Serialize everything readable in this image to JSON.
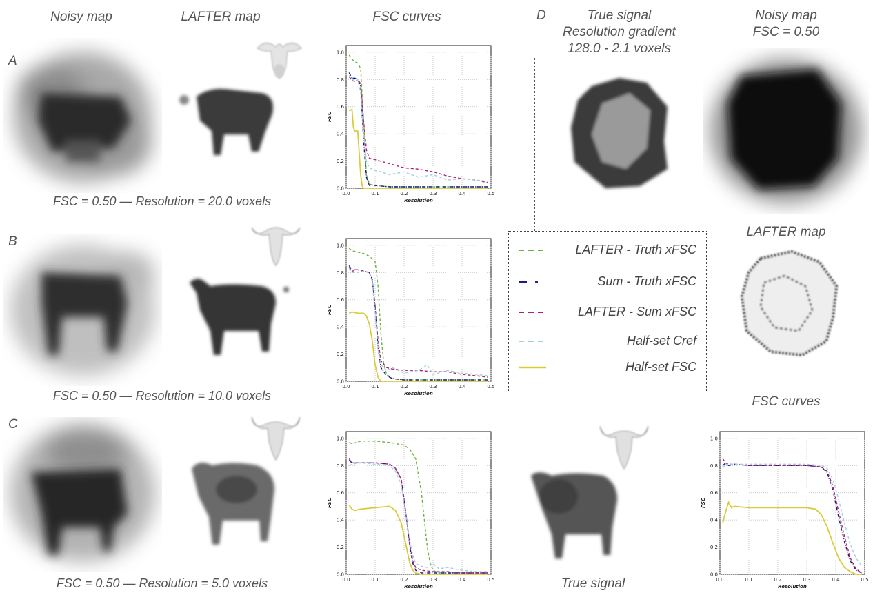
{
  "headers": {
    "noisy": "Noisy map",
    "lafter": "LAFTER map",
    "fsc": "FSC curves"
  },
  "rows": [
    {
      "letter": "A",
      "caption": "FSC = 0.50  —  Resolution = 20.0 voxels"
    },
    {
      "letter": "B",
      "caption": "FSC = 0.50  —  Resolution = 10.0 voxels"
    },
    {
      "letter": "C",
      "caption": "FSC = 0.50  —  Resolution = 5.0 voxels"
    }
  ],
  "panel_d": {
    "letter": "D",
    "true_signal_title_1": "True signal",
    "true_signal_title_2": "Resolution gradient",
    "true_signal_title_3": "128.0 - 2.1 voxels",
    "noisy_title_1": "Noisy map",
    "noisy_title_2": "FSC = 0.50",
    "lafter_title": "LAFTER map",
    "fsc_title": "FSC curves",
    "true_signal_caption": "True signal"
  },
  "legend": [
    {
      "label": "LAFTER - Truth xFSC",
      "color": "#6ab43e",
      "style": "dashed"
    },
    {
      "label": "Sum - Truth xFSC",
      "color": "#1a1a8c",
      "style": "dashdot"
    },
    {
      "label": "LAFTER - Sum xFSC",
      "color": "#b0206e",
      "style": "dashed"
    },
    {
      "label": "Half-set Cref",
      "color": "#9fd0e0",
      "style": "dashed"
    },
    {
      "label": "Half-set FSC",
      "color": "#d8cc3a",
      "style": "solid"
    }
  ],
  "chart_data": [
    {
      "type": "line",
      "id": "A",
      "xlabel": "Resolution",
      "ylabel": "FSC",
      "xlim": [
        0,
        0.5
      ],
      "ylim": [
        0,
        1.05
      ],
      "xticks": [
        "0.0",
        "0.1",
        "0.2",
        "0.3",
        "0.4",
        "0.5"
      ],
      "yticks": [
        "0.0",
        "0.2",
        "0.4",
        "0.6",
        "0.8",
        "1.0"
      ],
      "grid": true,
      "series": [
        {
          "name": "LAFTER - Truth xFSC",
          "x": [
            0.01,
            0.02,
            0.03,
            0.04,
            0.05,
            0.06,
            0.07,
            0.08,
            0.1,
            0.15,
            0.2,
            0.3,
            0.4,
            0.49
          ],
          "y": [
            0.98,
            0.95,
            0.93,
            0.92,
            0.88,
            0.5,
            0.1,
            0.03,
            0.02,
            0.01,
            0.01,
            0.01,
            0.01,
            0.01
          ]
        },
        {
          "name": "Sum - Truth xFSC",
          "x": [
            0.01,
            0.02,
            0.03,
            0.04,
            0.05,
            0.06,
            0.07,
            0.08,
            0.1,
            0.15,
            0.2,
            0.3,
            0.4,
            0.49
          ],
          "y": [
            0.85,
            0.81,
            0.81,
            0.8,
            0.75,
            0.35,
            0.08,
            0.02,
            0.02,
            0.01,
            0.01,
            0.01,
            0.01,
            0.01
          ]
        },
        {
          "name": "LAFTER - Sum xFSC",
          "x": [
            0.01,
            0.02,
            0.03,
            0.04,
            0.05,
            0.06,
            0.07,
            0.08,
            0.1,
            0.15,
            0.2,
            0.25,
            0.3,
            0.35,
            0.4,
            0.45,
            0.49
          ],
          "y": [
            0.82,
            0.8,
            0.78,
            0.8,
            0.77,
            0.5,
            0.28,
            0.22,
            0.21,
            0.18,
            0.15,
            0.14,
            0.12,
            0.09,
            0.07,
            0.06,
            0.04
          ]
        },
        {
          "name": "Half-set Cref",
          "x": [
            0.01,
            0.02,
            0.03,
            0.04,
            0.05,
            0.06,
            0.07,
            0.08,
            0.1,
            0.12,
            0.15,
            0.2,
            0.25,
            0.3,
            0.35,
            0.4,
            0.45,
            0.49
          ],
          "y": [
            0.83,
            0.8,
            0.79,
            0.8,
            0.7,
            0.4,
            0.2,
            0.15,
            0.13,
            0.12,
            0.1,
            0.12,
            0.08,
            0.1,
            0.06,
            0.07,
            0.06,
            0.05
          ]
        },
        {
          "name": "Half-set FSC",
          "x": [
            0.01,
            0.02,
            0.025,
            0.03,
            0.04,
            0.05,
            0.055,
            0.06,
            0.07,
            0.1,
            0.2,
            0.3,
            0.4,
            0.49
          ],
          "y": [
            0.57,
            0.58,
            0.45,
            0.42,
            0.42,
            0.1,
            0.02,
            0.0,
            0.0,
            0.0,
            0.0,
            0.0,
            0.0,
            0.0
          ]
        }
      ]
    },
    {
      "type": "line",
      "id": "B",
      "xlabel": "Resolution",
      "ylabel": "FSC",
      "xlim": [
        0,
        0.5
      ],
      "ylim": [
        0,
        1.05
      ],
      "xticks": [
        "0.0",
        "0.1",
        "0.2",
        "0.3",
        "0.4",
        "0.5"
      ],
      "yticks": [
        "0.0",
        "0.2",
        "0.4",
        "0.6",
        "0.8",
        "1.0"
      ],
      "grid": true,
      "series": [
        {
          "name": "LAFTER - Truth xFSC",
          "x": [
            0.01,
            0.02,
            0.04,
            0.06,
            0.08,
            0.1,
            0.11,
            0.12,
            0.13,
            0.14,
            0.16,
            0.2,
            0.3,
            0.4,
            0.49
          ],
          "y": [
            0.98,
            0.96,
            0.95,
            0.94,
            0.92,
            0.88,
            0.7,
            0.35,
            0.12,
            0.05,
            0.02,
            0.01,
            0.01,
            0.01,
            0.01
          ]
        },
        {
          "name": "Sum - Truth xFSC",
          "x": [
            0.01,
            0.02,
            0.04,
            0.06,
            0.08,
            0.09,
            0.1,
            0.11,
            0.12,
            0.14,
            0.16,
            0.2,
            0.3,
            0.4,
            0.49
          ],
          "y": [
            0.85,
            0.82,
            0.82,
            0.81,
            0.8,
            0.75,
            0.55,
            0.25,
            0.1,
            0.04,
            0.02,
            0.01,
            0.01,
            0.01,
            0.01
          ]
        },
        {
          "name": "LAFTER - Sum xFSC",
          "x": [
            0.01,
            0.02,
            0.04,
            0.06,
            0.08,
            0.09,
            0.1,
            0.11,
            0.12,
            0.14,
            0.16,
            0.2,
            0.25,
            0.3,
            0.35,
            0.4,
            0.45,
            0.49
          ],
          "y": [
            0.84,
            0.81,
            0.82,
            0.81,
            0.8,
            0.74,
            0.55,
            0.3,
            0.15,
            0.1,
            0.09,
            0.08,
            0.08,
            0.07,
            0.07,
            0.05,
            0.04,
            0.03
          ]
        },
        {
          "name": "Half-set Cref",
          "x": [
            0.01,
            0.02,
            0.04,
            0.06,
            0.08,
            0.09,
            0.1,
            0.11,
            0.12,
            0.14,
            0.16,
            0.2,
            0.25,
            0.28,
            0.3,
            0.35,
            0.4,
            0.45,
            0.49
          ],
          "y": [
            0.83,
            0.8,
            0.8,
            0.81,
            0.8,
            0.74,
            0.5,
            0.25,
            0.12,
            0.08,
            0.1,
            0.06,
            0.08,
            0.12,
            0.05,
            0.08,
            0.06,
            0.05,
            0.04
          ]
        },
        {
          "name": "Half-set FSC",
          "x": [
            0.01,
            0.02,
            0.04,
            0.06,
            0.07,
            0.08,
            0.09,
            0.1,
            0.11,
            0.12,
            0.14,
            0.2,
            0.3,
            0.4,
            0.49
          ],
          "y": [
            0.5,
            0.51,
            0.5,
            0.5,
            0.48,
            0.42,
            0.3,
            0.12,
            0.03,
            0.0,
            0.0,
            0.0,
            0.0,
            0.0,
            0.0
          ]
        }
      ]
    },
    {
      "type": "line",
      "id": "C",
      "xlabel": "Resolution",
      "ylabel": "FSC",
      "xlim": [
        0,
        0.5
      ],
      "ylim": [
        0,
        1.05
      ],
      "xticks": [
        "0.0",
        "0.1",
        "0.2",
        "0.3",
        "0.4",
        "0.5"
      ],
      "yticks": [
        "0.0",
        "0.2",
        "0.4",
        "0.6",
        "0.8",
        "1.0"
      ],
      "grid": true,
      "series": [
        {
          "name": "LAFTER - Truth xFSC",
          "x": [
            0.01,
            0.02,
            0.05,
            0.1,
            0.15,
            0.2,
            0.22,
            0.24,
            0.26,
            0.27,
            0.28,
            0.29,
            0.3,
            0.32,
            0.35,
            0.4,
            0.49
          ],
          "y": [
            0.97,
            0.96,
            0.98,
            0.98,
            0.97,
            0.95,
            0.92,
            0.85,
            0.6,
            0.4,
            0.2,
            0.08,
            0.03,
            0.01,
            0.01,
            0.01,
            0.01
          ]
        },
        {
          "name": "Sum - Truth xFSC",
          "x": [
            0.01,
            0.02,
            0.05,
            0.1,
            0.15,
            0.17,
            0.19,
            0.2,
            0.21,
            0.22,
            0.23,
            0.24,
            0.26,
            0.3,
            0.4,
            0.49
          ],
          "y": [
            0.84,
            0.82,
            0.82,
            0.82,
            0.81,
            0.78,
            0.7,
            0.55,
            0.38,
            0.2,
            0.08,
            0.03,
            0.01,
            0.01,
            0.01,
            0.01
          ]
        },
        {
          "name": "LAFTER - Sum xFSC",
          "x": [
            0.01,
            0.02,
            0.05,
            0.1,
            0.15,
            0.17,
            0.19,
            0.2,
            0.21,
            0.22,
            0.23,
            0.24,
            0.26,
            0.3,
            0.35,
            0.4,
            0.49
          ],
          "y": [
            0.85,
            0.82,
            0.82,
            0.82,
            0.81,
            0.78,
            0.7,
            0.55,
            0.38,
            0.22,
            0.1,
            0.05,
            0.03,
            0.02,
            0.02,
            0.01,
            0.01
          ]
        },
        {
          "name": "Half-set Cref",
          "x": [
            0.01,
            0.02,
            0.05,
            0.1,
            0.15,
            0.17,
            0.19,
            0.2,
            0.21,
            0.22,
            0.23,
            0.24,
            0.26,
            0.28,
            0.3,
            0.32,
            0.35,
            0.4,
            0.45,
            0.49
          ],
          "y": [
            0.8,
            0.81,
            0.82,
            0.81,
            0.8,
            0.76,
            0.66,
            0.52,
            0.38,
            0.24,
            0.14,
            0.08,
            0.06,
            0.05,
            0.08,
            0.04,
            0.05,
            0.03,
            0.02,
            0.02
          ]
        },
        {
          "name": "Half-set FSC",
          "x": [
            0.01,
            0.02,
            0.03,
            0.05,
            0.1,
            0.15,
            0.17,
            0.19,
            0.2,
            0.21,
            0.22,
            0.23,
            0.24,
            0.26,
            0.3,
            0.4,
            0.49
          ],
          "y": [
            0.51,
            0.48,
            0.47,
            0.48,
            0.49,
            0.5,
            0.47,
            0.38,
            0.28,
            0.18,
            0.08,
            0.03,
            0.01,
            0.0,
            0.0,
            0.0,
            0.0
          ]
        }
      ]
    },
    {
      "type": "line",
      "id": "D",
      "xlabel": "Resolution",
      "ylabel": "FSC",
      "xlim": [
        0,
        0.5
      ],
      "ylim": [
        0,
        1.05
      ],
      "xticks": [
        "0.0",
        "0.1",
        "0.2",
        "0.3",
        "0.4",
        "0.5"
      ],
      "yticks": [
        "0.0",
        "0.2",
        "0.4",
        "0.6",
        "0.8",
        "1.0"
      ],
      "grid": true,
      "series": [
        {
          "name": "Sum - Truth xFSC",
          "x": [
            0.01,
            0.02,
            0.03,
            0.05,
            0.1,
            0.15,
            0.2,
            0.25,
            0.3,
            0.35,
            0.37,
            0.39,
            0.41,
            0.43,
            0.45,
            0.47,
            0.49
          ],
          "y": [
            0.8,
            0.82,
            0.8,
            0.81,
            0.8,
            0.8,
            0.8,
            0.8,
            0.8,
            0.79,
            0.75,
            0.62,
            0.42,
            0.24,
            0.1,
            0.03,
            0.01
          ]
        },
        {
          "name": "LAFTER - Sum xFSC",
          "x": [
            0.01,
            0.02,
            0.03,
            0.05,
            0.1,
            0.15,
            0.2,
            0.25,
            0.3,
            0.35,
            0.37,
            0.39,
            0.41,
            0.43,
            0.45,
            0.47,
            0.49
          ],
          "y": [
            0.85,
            0.82,
            0.81,
            0.81,
            0.8,
            0.8,
            0.8,
            0.8,
            0.8,
            0.79,
            0.76,
            0.65,
            0.46,
            0.28,
            0.12,
            0.04,
            0.01
          ]
        },
        {
          "name": "Half-set Cref",
          "x": [
            0.01,
            0.02,
            0.03,
            0.05,
            0.1,
            0.15,
            0.2,
            0.25,
            0.3,
            0.35,
            0.37,
            0.39,
            0.41,
            0.43,
            0.45,
            0.47,
            0.49
          ],
          "y": [
            0.78,
            0.81,
            0.81,
            0.81,
            0.81,
            0.81,
            0.81,
            0.81,
            0.81,
            0.8,
            0.78,
            0.7,
            0.55,
            0.38,
            0.22,
            0.12,
            0.06
          ]
        },
        {
          "name": "Half-set FSC",
          "x": [
            0.01,
            0.02,
            0.03,
            0.04,
            0.05,
            0.1,
            0.15,
            0.2,
            0.25,
            0.3,
            0.33,
            0.35,
            0.37,
            0.39,
            0.41,
            0.43,
            0.45,
            0.47,
            0.49
          ],
          "y": [
            0.38,
            0.46,
            0.53,
            0.49,
            0.5,
            0.49,
            0.49,
            0.49,
            0.49,
            0.49,
            0.48,
            0.44,
            0.35,
            0.23,
            0.12,
            0.05,
            0.02,
            0.0,
            0.0
          ]
        }
      ]
    }
  ]
}
